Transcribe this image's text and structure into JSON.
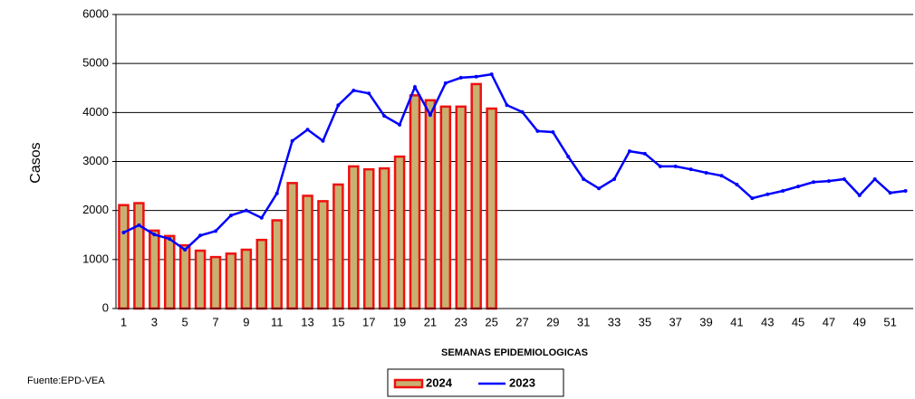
{
  "chart_data": {
    "type": "bar_line",
    "y_label": "Casos",
    "x_label": "SEMANAS EPIDEMIOLOGICAS",
    "source": "Fuente:EPD-VEA",
    "categories": [
      "1",
      null,
      "3",
      null,
      "5",
      null,
      "7",
      null,
      "9",
      null,
      "11",
      null,
      "13",
      null,
      "15",
      null,
      "17",
      null,
      "19",
      null,
      "21",
      null,
      "23",
      null,
      "25",
      null,
      "27",
      null,
      "29",
      null,
      "31",
      null,
      "33",
      null,
      "35",
      null,
      "37",
      null,
      "39",
      null,
      "41",
      null,
      "43",
      null,
      "45",
      null,
      "47",
      null,
      "49",
      null,
      "51",
      null
    ],
    "series": [
      {
        "name": "2024",
        "type": "bar",
        "color": "#c8b070",
        "edge_color": "#ee1111",
        "values": [
          2110,
          2150,
          1590,
          1480,
          1290,
          1180,
          1050,
          1120,
          1200,
          1400,
          1800,
          2560,
          2300,
          2190,
          2530,
          2900,
          2840,
          2860,
          3100,
          4350,
          4250,
          4120,
          4120,
          4580,
          4080,
          null,
          null,
          null,
          null,
          null,
          null,
          null,
          null,
          null,
          null,
          null,
          null,
          null,
          null,
          null,
          null,
          null,
          null,
          null,
          null,
          null,
          null,
          null,
          null,
          null,
          null,
          null
        ]
      },
      {
        "name": "2023",
        "type": "line",
        "color": "#0000ff",
        "values": [
          1550,
          1700,
          1510,
          1420,
          1200,
          1490,
          1580,
          1900,
          2000,
          1850,
          2350,
          3420,
          3650,
          3420,
          4150,
          4450,
          4390,
          3930,
          3750,
          4520,
          3950,
          4600,
          4710,
          4730,
          4780,
          4150,
          4010,
          3620,
          3600,
          3100,
          2640,
          2450,
          2640,
          3210,
          3160,
          2900,
          2900,
          2840,
          2770,
          2710,
          2530,
          2250,
          2330,
          2400,
          2490,
          2580,
          2600,
          2640,
          2310,
          2640,
          2360,
          2400
        ]
      }
    ],
    "ylim": [
      0,
      6000
    ],
    "yticks": [
      0,
      1000,
      2000,
      3000,
      4000,
      5000,
      6000
    ],
    "grid": true
  }
}
